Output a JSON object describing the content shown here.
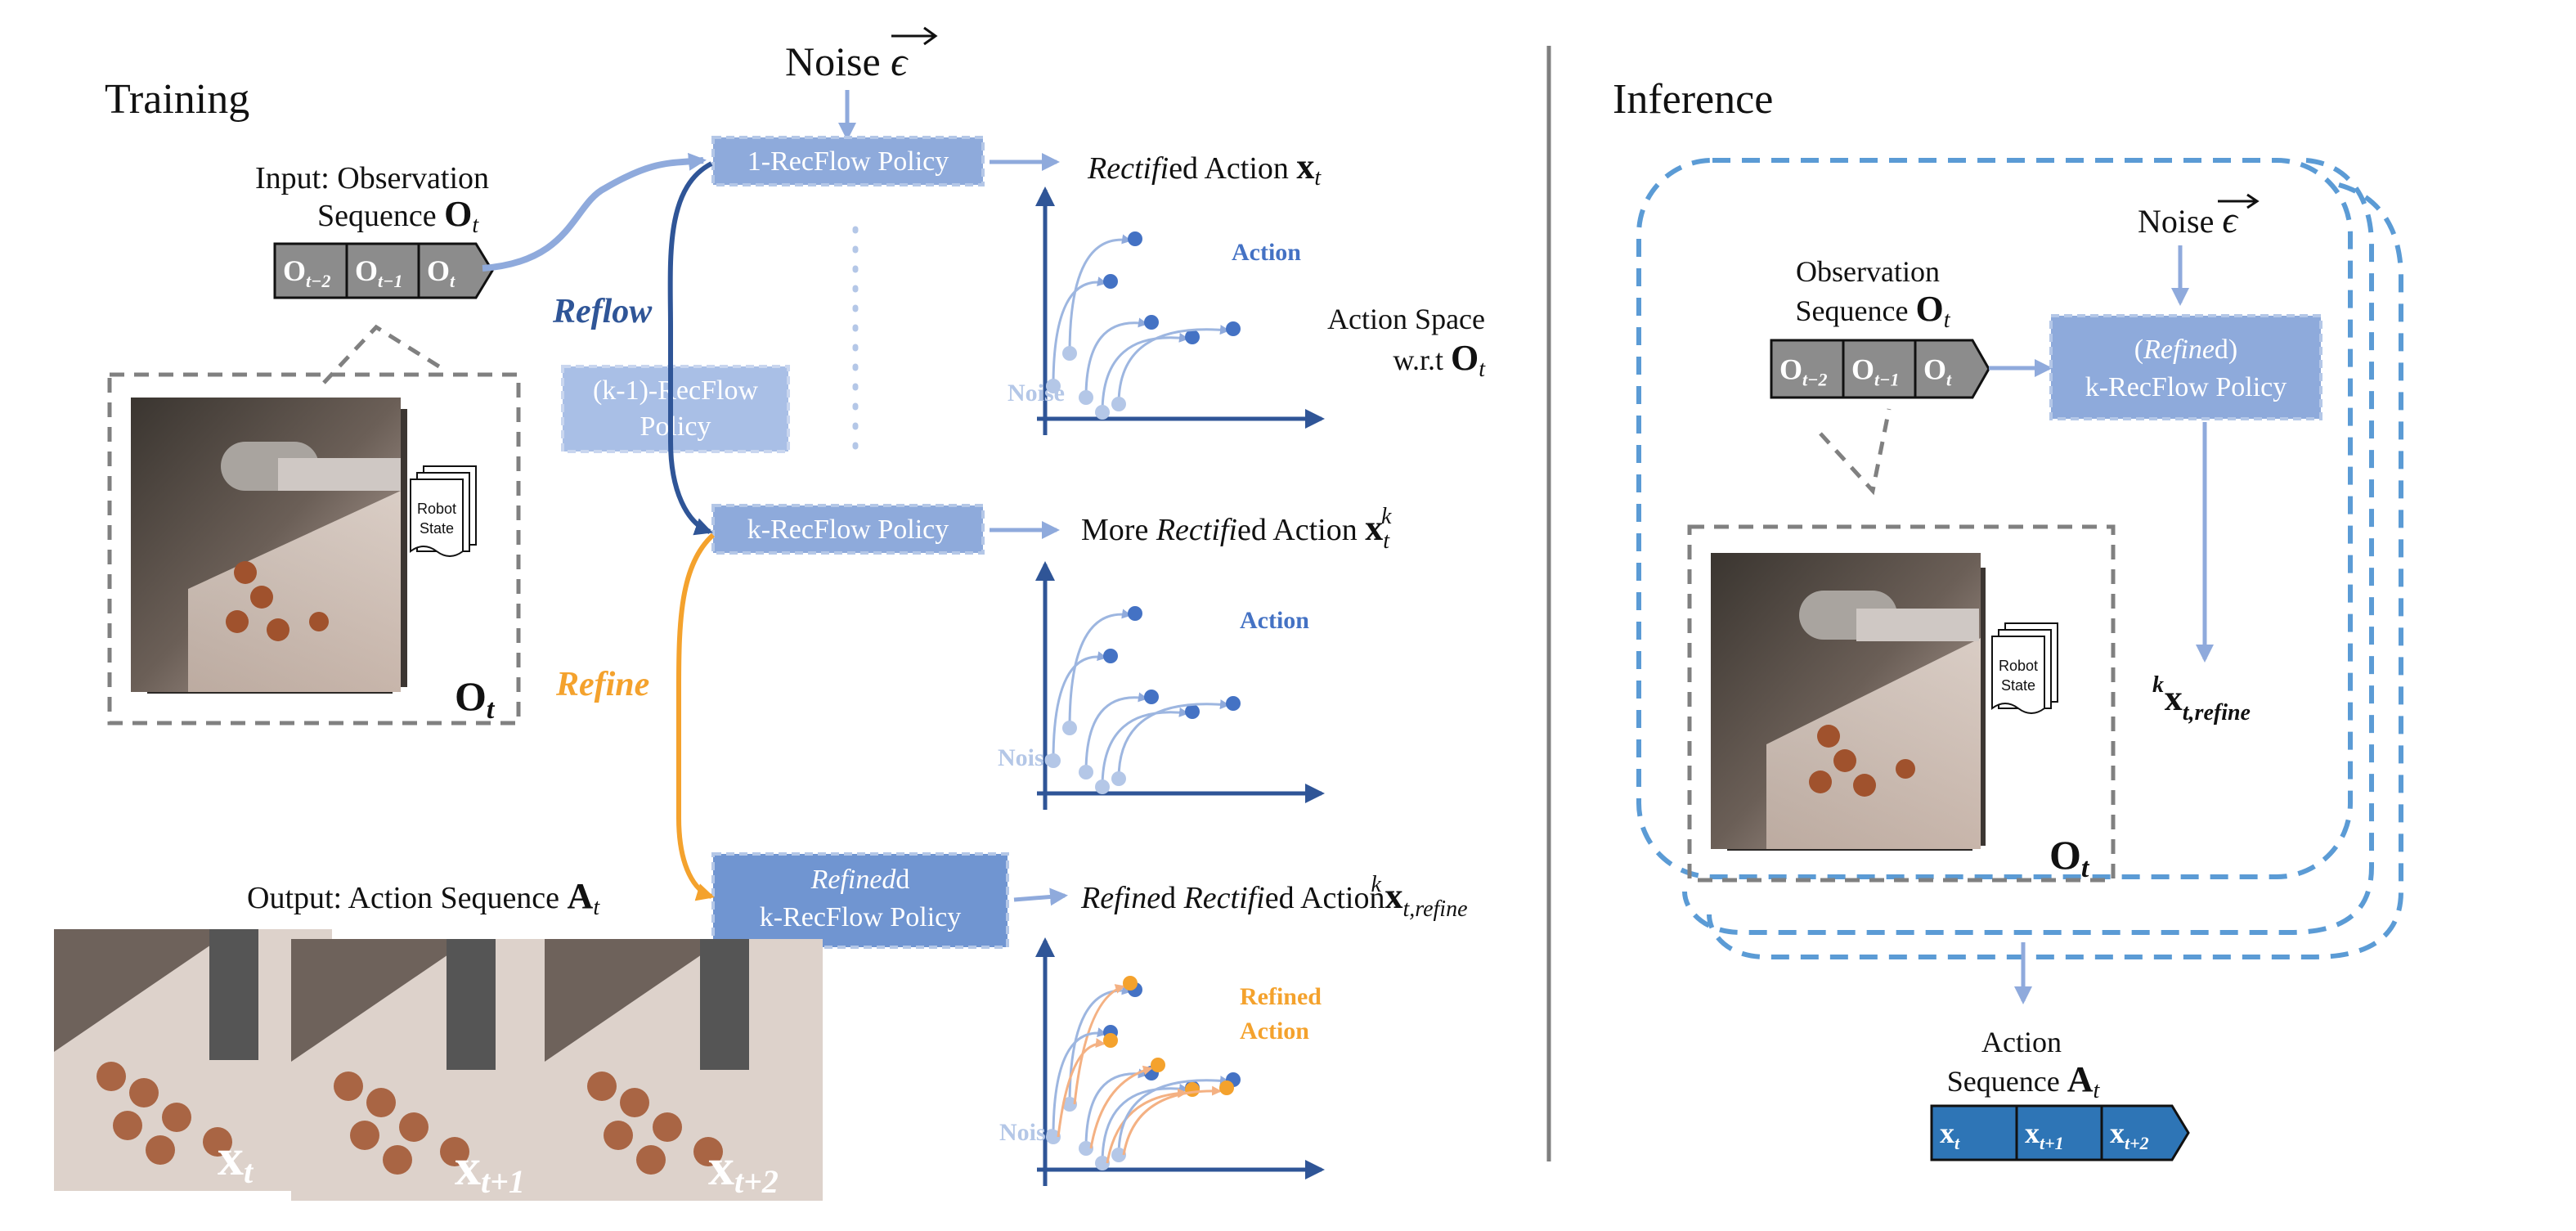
{
  "training": {
    "heading": "Training",
    "noise_label": "Noise",
    "noise_symbol": "ϵ",
    "input_label_line1": "Input: Observation",
    "input_label_line2": "Sequence",
    "obs_symbol": "O",
    "obs_sub": "t",
    "obs_tokens": [
      {
        "base": "O",
        "sub": "t−2"
      },
      {
        "base": "O",
        "sub": "t−1"
      },
      {
        "base": "O",
        "sub": "t"
      }
    ],
    "robot_state_line1": "Robot",
    "robot_state_line2": "State",
    "reflow_label": "Reflow",
    "refine_label": "Refine",
    "policy_1": "1-RecFlow Policy",
    "policy_km1_line1": "(k-1)-RecFlow",
    "policy_km1_line2": "Policy",
    "policy_k": "k-RecFlow Policy",
    "policy_refined_line1": "Refined",
    "policy_refined_line1_suffix": "d",
    "policy_refined_line2": "k-RecFlow Policy",
    "output_label": "Output: Action Sequence",
    "action_symbol": "A",
    "action_sub": "t",
    "frames": [
      {
        "base": "x",
        "sub": "t"
      },
      {
        "base": "x",
        "sub": "t+1"
      },
      {
        "base": "x",
        "sub": "t+2"
      }
    ]
  },
  "plots": {
    "p1": {
      "title_italic": "Rectifi",
      "title_rest": "ed Action",
      "symbol": "x",
      "sub": "t",
      "sup": "",
      "action_label": "Action",
      "noise_label": "Noise",
      "space_line1": "Action Space",
      "space_line2": "w.r.t",
      "space_sym": "O",
      "space_sub": "t"
    },
    "p2": {
      "title_prefix": "More",
      "title_italic": "Rectifi",
      "title_rest": "ed Action",
      "symbol": "x",
      "sub": "t",
      "sup": "k",
      "action_label": "Action",
      "noise_label": "Noise"
    },
    "p3": {
      "title_italic1": "Refine",
      "title_mid": "d",
      "title_italic2": "Rectifi",
      "title_rest": "ed Action",
      "symbol": "x",
      "sub": "t,refine",
      "sup": "k",
      "action_label_line1": "Refined",
      "action_label_line2": "Action",
      "noise_label": "Noise"
    }
  },
  "inference": {
    "heading": "Inference",
    "noise_label": "Noise",
    "noise_symbol": "ϵ",
    "obs_label_line1": "Observation",
    "obs_label_line2": "Sequence",
    "obs_symbol": "O",
    "obs_sub": "t",
    "obs_tokens": [
      {
        "base": "O",
        "sub": "t−2"
      },
      {
        "base": "O",
        "sub": "t−1"
      },
      {
        "base": "O",
        "sub": "t"
      }
    ],
    "policy_line1_pre": "(",
    "policy_line1_italic": "Refine",
    "policy_line1_post": "d)",
    "policy_line2": "k-RecFlow Policy",
    "output_symbol": "x",
    "output_sub": "t,refine",
    "output_sup": "k",
    "robot_state_line1": "Robot",
    "robot_state_line2": "State",
    "action_label_line1": "Action",
    "action_label_line2": "Sequence",
    "action_symbol": "A",
    "action_sub": "t",
    "action_tokens": [
      {
        "base": "x",
        "sub": "t"
      },
      {
        "base": "x",
        "sub": "t+1"
      },
      {
        "base": "x",
        "sub": "t+2"
      }
    ]
  },
  "colors": {
    "policy_fill": "#8eaadb",
    "policy_dark": "#7095d1",
    "arrow_light": "#8faadc",
    "reflow": "#2f5597",
    "refine": "#f4a22d",
    "action_dot": "#4472c4",
    "noise_dot": "#b4c7e7",
    "axis": "#2f5597",
    "loop": "#5b9bd5",
    "token_gray": "#8c8c8c",
    "token_blue": "#2e75b6",
    "divider": "#7f7f7f"
  }
}
